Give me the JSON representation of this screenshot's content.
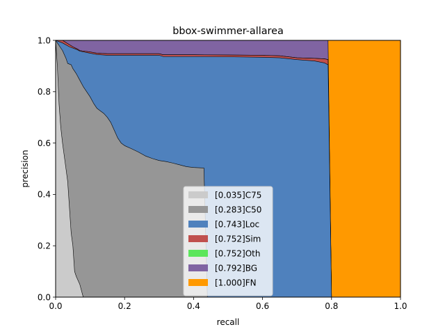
{
  "chart_data": {
    "type": "area",
    "title": "bbox-swimmer-allarea",
    "xlabel": "recall",
    "ylabel": "precision",
    "xlim": [
      0,
      1
    ],
    "ylim": [
      0,
      1
    ],
    "x_ticks": [
      "0.0",
      "0.2",
      "0.4",
      "0.6",
      "0.8",
      "1.0"
    ],
    "y_ticks": [
      "0.0",
      "0.2",
      "0.4",
      "0.6",
      "0.8",
      "1.0"
    ],
    "grid": false,
    "legend_position": "lower center",
    "series": [
      {
        "name": "[1.000]FN",
        "color": "#ff9900",
        "points": [
          [
            0,
            1
          ],
          [
            1,
            1
          ],
          [
            1,
            0
          ],
          [
            0,
            0
          ]
        ]
      },
      {
        "name": "[0.792]BG",
        "color": "#8064a2",
        "points": [
          [
            0,
            1
          ],
          [
            0.79,
            1
          ],
          [
            0.79,
            0.99
          ],
          [
            0.8,
            0
          ],
          [
            0,
            0
          ]
        ]
      },
      {
        "name": "[0.752]Oth",
        "color": "#5ce65c",
        "points": [
          [
            0,
            1
          ],
          [
            0.02,
            1
          ],
          [
            0.05,
            0.975
          ],
          [
            0.065,
            0.965
          ],
          [
            0.07,
            0.96
          ],
          [
            0.1,
            0.955
          ],
          [
            0.12,
            0.95
          ],
          [
            0.15,
            0.948
          ],
          [
            0.2,
            0.948
          ],
          [
            0.3,
            0.948
          ],
          [
            0.312,
            0.944
          ],
          [
            0.4,
            0.944
          ],
          [
            0.5,
            0.943
          ],
          [
            0.6,
            0.942
          ],
          [
            0.65,
            0.94
          ],
          [
            0.7,
            0.932
          ],
          [
            0.75,
            0.93
          ],
          [
            0.78,
            0.928
          ],
          [
            0.79,
            0.925
          ],
          [
            0.8,
            0
          ],
          [
            0,
            0
          ]
        ]
      },
      {
        "name": "[0.752]Sim",
        "color": "#c0504d",
        "points": [
          [
            0,
            1
          ],
          [
            0.02,
            1
          ],
          [
            0.05,
            0.975
          ],
          [
            0.065,
            0.965
          ],
          [
            0.07,
            0.96
          ],
          [
            0.1,
            0.955
          ],
          [
            0.12,
            0.95
          ],
          [
            0.15,
            0.948
          ],
          [
            0.2,
            0.948
          ],
          [
            0.3,
            0.948
          ],
          [
            0.312,
            0.944
          ],
          [
            0.4,
            0.944
          ],
          [
            0.5,
            0.943
          ],
          [
            0.6,
            0.942
          ],
          [
            0.65,
            0.94
          ],
          [
            0.7,
            0.932
          ],
          [
            0.75,
            0.93
          ],
          [
            0.78,
            0.928
          ],
          [
            0.79,
            0.925
          ],
          [
            0.8,
            0
          ],
          [
            0,
            0
          ]
        ]
      },
      {
        "name": "[0.743]Loc",
        "color": "#4f81bd",
        "points": [
          [
            0,
            1
          ],
          [
            0.02,
            0.99
          ],
          [
            0.04,
            0.975
          ],
          [
            0.06,
            0.965
          ],
          [
            0.07,
            0.958
          ],
          [
            0.1,
            0.95
          ],
          [
            0.12,
            0.945
          ],
          [
            0.15,
            0.942
          ],
          [
            0.2,
            0.942
          ],
          [
            0.3,
            0.942
          ],
          [
            0.312,
            0.937
          ],
          [
            0.4,
            0.937
          ],
          [
            0.5,
            0.936
          ],
          [
            0.6,
            0.934
          ],
          [
            0.65,
            0.932
          ],
          [
            0.7,
            0.925
          ],
          [
            0.75,
            0.92
          ],
          [
            0.78,
            0.912
          ],
          [
            0.79,
            0.905
          ],
          [
            0.8,
            0
          ],
          [
            0,
            0
          ]
        ]
      },
      {
        "name": "[0.283]C50",
        "color": "#969696",
        "points": [
          [
            0,
            1
          ],
          [
            0.005,
            0.99
          ],
          [
            0.01,
            0.98
          ],
          [
            0.02,
            0.96
          ],
          [
            0.03,
            0.93
          ],
          [
            0.035,
            0.91
          ],
          [
            0.045,
            0.905
          ],
          [
            0.05,
            0.89
          ],
          [
            0.06,
            0.87
          ],
          [
            0.07,
            0.845
          ],
          [
            0.08,
            0.82
          ],
          [
            0.09,
            0.8
          ],
          [
            0.1,
            0.78
          ],
          [
            0.11,
            0.755
          ],
          [
            0.12,
            0.735
          ],
          [
            0.13,
            0.725
          ],
          [
            0.14,
            0.715
          ],
          [
            0.15,
            0.7
          ],
          [
            0.16,
            0.68
          ],
          [
            0.17,
            0.65
          ],
          [
            0.18,
            0.62
          ],
          [
            0.19,
            0.6
          ],
          [
            0.2,
            0.59
          ],
          [
            0.22,
            0.578
          ],
          [
            0.24,
            0.565
          ],
          [
            0.26,
            0.55
          ],
          [
            0.28,
            0.54
          ],
          [
            0.3,
            0.532
          ],
          [
            0.32,
            0.528
          ],
          [
            0.34,
            0.522
          ],
          [
            0.36,
            0.515
          ],
          [
            0.38,
            0.508
          ],
          [
            0.4,
            0.505
          ],
          [
            0.43,
            0.503
          ],
          [
            0.44,
            0
          ],
          [
            0,
            0
          ]
        ]
      },
      {
        "name": "[0.035]C75",
        "color": "#cbcbcb",
        "points": [
          [
            0,
            1
          ],
          [
            0.005,
            0.9
          ],
          [
            0.01,
            0.75
          ],
          [
            0.015,
            0.66
          ],
          [
            0.02,
            0.6
          ],
          [
            0.03,
            0.5
          ],
          [
            0.035,
            0.45
          ],
          [
            0.04,
            0.35
          ],
          [
            0.045,
            0.25
          ],
          [
            0.05,
            0.2
          ],
          [
            0.055,
            0.1
          ],
          [
            0.06,
            0.08
          ],
          [
            0.07,
            0.05
          ],
          [
            0.08,
            0.0
          ],
          [
            0,
            0
          ]
        ]
      }
    ]
  }
}
